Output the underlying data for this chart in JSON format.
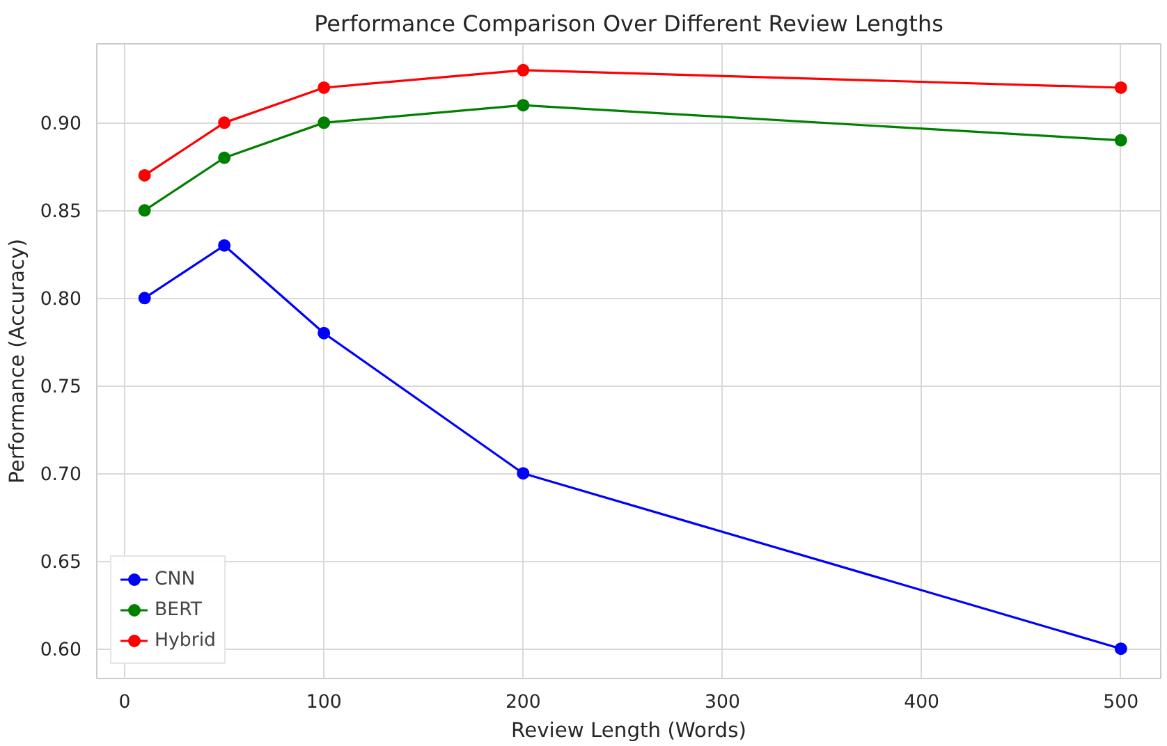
{
  "chart_data": {
    "type": "line",
    "title": "Performance Comparison Over Different Review Lengths",
    "xlabel": "Review Length (Words)",
    "ylabel": "Performance (Accuracy)",
    "x": [
      10,
      50,
      100,
      200,
      500
    ],
    "series": [
      {
        "name": "CNN",
        "color": "#0000ff",
        "values": [
          0.8,
          0.83,
          0.78,
          0.7,
          0.6
        ]
      },
      {
        "name": "BERT",
        "color": "#008000",
        "values": [
          0.85,
          0.88,
          0.9,
          0.91,
          0.89
        ]
      },
      {
        "name": "Hybrid",
        "color": "#ff0000",
        "values": [
          0.87,
          0.9,
          0.92,
          0.93,
          0.92
        ]
      }
    ],
    "xlim": [
      -14,
      520
    ],
    "ylim": [
      0.583,
      0.945
    ],
    "xticks": [
      0,
      100,
      200,
      300,
      400,
      500
    ],
    "yticks": [
      {
        "value": 0.6,
        "label": "0.60"
      },
      {
        "value": 0.65,
        "label": "0.65"
      },
      {
        "value": 0.7,
        "label": "0.70"
      },
      {
        "value": 0.75,
        "label": "0.75"
      },
      {
        "value": 0.8,
        "label": "0.80"
      },
      {
        "value": 0.85,
        "label": "0.85"
      },
      {
        "value": 0.9,
        "label": "0.90"
      }
    ],
    "grid": true,
    "legend": "bottom left",
    "marker": "circle",
    "line_style": "solid"
  }
}
